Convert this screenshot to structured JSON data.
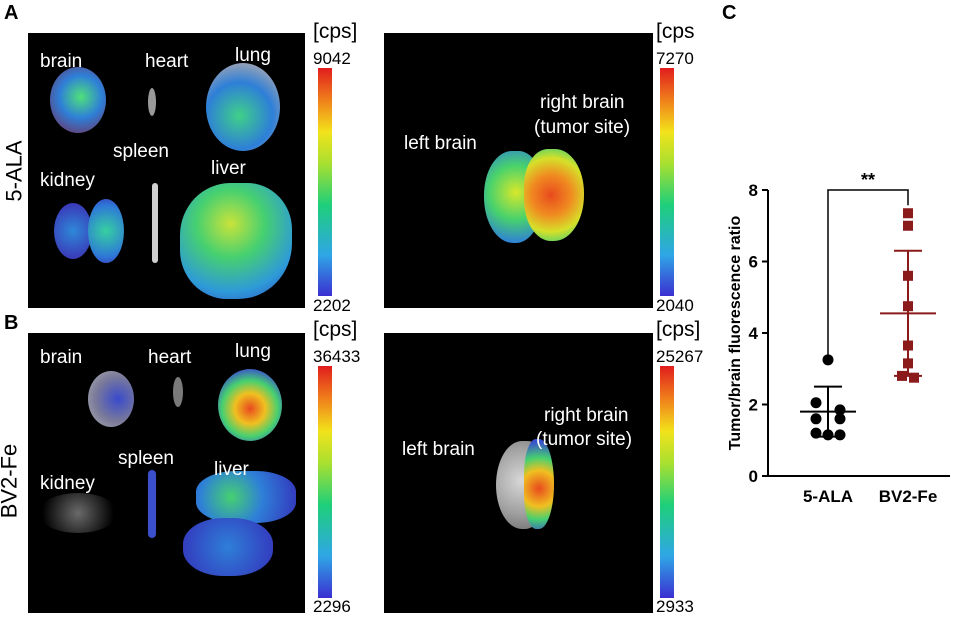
{
  "panels": {
    "a_letter": "A",
    "b_letter": "B",
    "c_letter": "C"
  },
  "row_labels": {
    "a": "5-ALA",
    "b": "BV2-Fe"
  },
  "organs_a": {
    "brain": "brain",
    "heart": "heart",
    "lung": "lung",
    "kidney": "kidney",
    "spleen": "spleen",
    "liver": "liver"
  },
  "organs_b": {
    "brain": "brain",
    "heart": "heart",
    "lung": "lung",
    "kidney": "kidney",
    "spleen": "spleen",
    "liver": "liver"
  },
  "brain_labels_a": {
    "left": "left brain",
    "right_1": "right brain",
    "right_2": "(tumor site)"
  },
  "brain_labels_b": {
    "left": "left brain",
    "right_1": "right brain",
    "right_2": "(tumor site)"
  },
  "colorbars": {
    "a_organs": {
      "unit": "[cps]",
      "max": "9042",
      "min": "2202"
    },
    "a_brain": {
      "unit": "[cps",
      "max": "7270",
      "min": "2040"
    },
    "b_organs": {
      "unit": "[cps]",
      "max": "36433",
      "min": "2296"
    },
    "b_brain": {
      "unit": "[cps]",
      "max": "25267",
      "min": "2933"
    }
  },
  "colors": {
    "alaDot": "#000000",
    "bv2Square": "#8b1a1a",
    "bv2Bar": "#8b1a1a"
  },
  "chart_data": {
    "type": "scatter",
    "ylabel": "Tumor/brain fluorescence ratio",
    "categories": [
      "5-ALA",
      "BV2-Fe"
    ],
    "ylim": [
      0,
      8
    ],
    "yticks": [
      "0",
      "2",
      "4",
      "6",
      "8"
    ],
    "significance": "**",
    "series": [
      {
        "name": "5-ALA",
        "values": [
          3.25,
          2.05,
          1.85,
          1.6,
          1.6,
          1.2,
          1.15,
          1.15
        ],
        "mean": 1.8,
        "sd_upper": 2.5,
        "sd_lower": 1.1
      },
      {
        "name": "BV2-Fe",
        "values": [
          7.35,
          7.0,
          5.6,
          4.75,
          3.65,
          3.15,
          2.8,
          2.75
        ],
        "mean": 4.55,
        "sd_upper": 6.3,
        "sd_lower": 2.8
      }
    ]
  }
}
